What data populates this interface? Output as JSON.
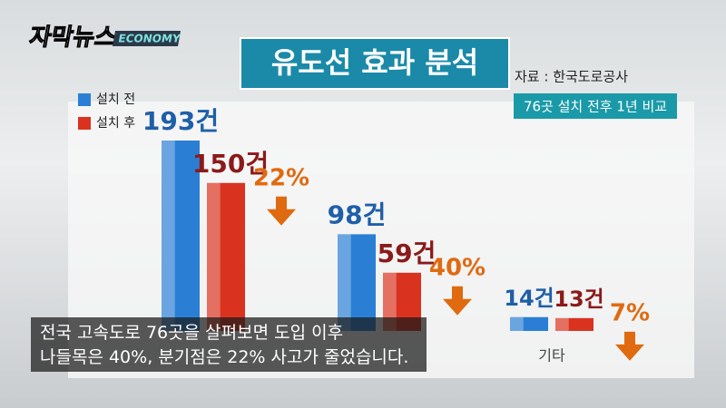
{
  "logo": {
    "name": "자막뉴스",
    "section": "ECONOMY"
  },
  "chart_data": {
    "type": "bar",
    "title": "유도선 효과 분석",
    "source": "자료 : 한국도로공사",
    "note": "76곳 설치 전후 1년 비교",
    "categories": [
      null,
      null,
      "기타"
    ],
    "series": [
      {
        "name": "설치 전",
        "color": "#2a7fd4",
        "values": [
          193,
          98,
          14
        ],
        "value_labels": [
          "193건",
          "98건",
          "14건"
        ]
      },
      {
        "name": "설치 후",
        "color": "#d9331f",
        "values": [
          150,
          59,
          13
        ],
        "value_labels": [
          "150건",
          "59건",
          "13건"
        ]
      }
    ],
    "reductions": {
      "values": [
        22,
        40,
        7
      ],
      "value_labels": [
        "22%",
        "40%",
        "7%"
      ]
    }
  },
  "subtitle": [
    "전국 고속도로 76곳을 살펴보면 도입 이후",
    "나들목은 40%, 분기점은 22% 사고가 줄었습니다."
  ]
}
